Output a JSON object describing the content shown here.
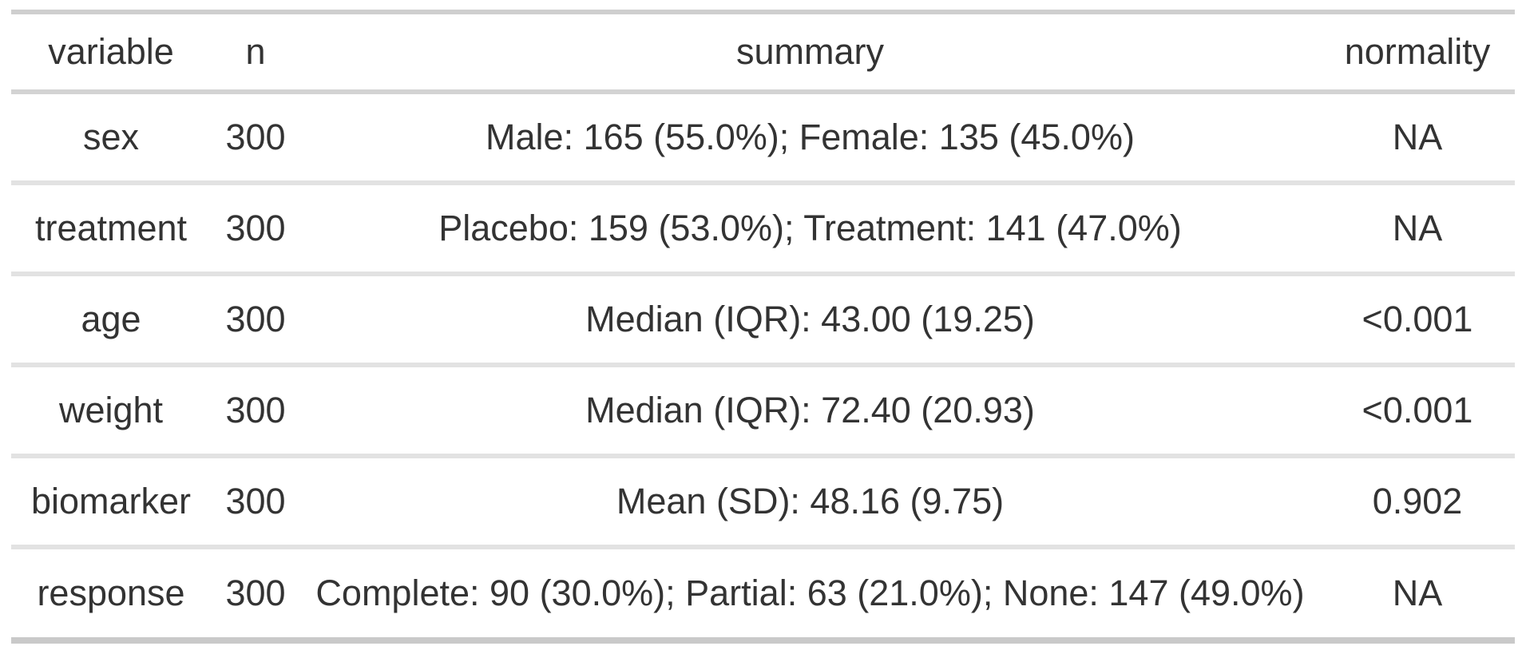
{
  "chart_data": {
    "type": "table",
    "columns": [
      {
        "key": "variable",
        "label": "variable"
      },
      {
        "key": "n",
        "label": "n"
      },
      {
        "key": "summary",
        "label": "summary"
      },
      {
        "key": "normality",
        "label": "normality"
      }
    ],
    "rows": [
      {
        "variable": "sex",
        "n": "300",
        "summary": "Male: 165 (55.0%); Female: 135 (45.0%)",
        "normality": "NA"
      },
      {
        "variable": "treatment",
        "n": "300",
        "summary": "Placebo: 159 (53.0%); Treatment: 141 (47.0%)",
        "normality": "NA"
      },
      {
        "variable": "age",
        "n": "300",
        "summary": "Median (IQR): 43.00 (19.25)",
        "normality": "<0.001"
      },
      {
        "variable": "weight",
        "n": "300",
        "summary": "Median (IQR): 72.40 (20.93)",
        "normality": "<0.001"
      },
      {
        "variable": "biomarker",
        "n": "300",
        "summary": "Mean (SD): 48.16 (9.75)",
        "normality": "0.902"
      },
      {
        "variable": "response",
        "n": "300",
        "summary": "Complete: 90 (30.0%); Partial: 63 (21.0%); None: 147 (49.0%)",
        "normality": "NA"
      }
    ],
    "colors": {
      "text": "#333333",
      "border_top": "#cfcfcf",
      "border_header": "#d3d3d3",
      "border_row": "#e2e2e2",
      "border_bottom": "#c9c9c9",
      "background": "#ffffff"
    }
  }
}
